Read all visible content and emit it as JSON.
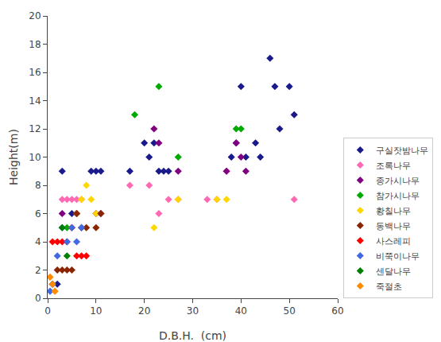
{
  "chart_data": {
    "type": "scatter",
    "xlabel": "D.B.H.  (cm)",
    "ylabel": "Height(m)",
    "xlim": [
      0,
      60
    ],
    "ylim": [
      0,
      20
    ],
    "xticks": [
      0,
      10,
      20,
      30,
      40,
      50,
      60
    ],
    "yticks": [
      0,
      2,
      4,
      6,
      8,
      10,
      12,
      14,
      16,
      18,
      20
    ],
    "grid": false,
    "legend": "lower right",
    "marker": "diamond",
    "series": [
      {
        "name": "구실잣밤나무",
        "color": "#1a1a8c",
        "x": [
          1,
          2,
          3,
          5,
          6,
          9,
          10,
          11,
          17,
          20,
          21,
          22,
          23,
          24,
          25,
          38,
          39,
          40,
          41,
          43,
          44,
          46,
          47,
          48,
          50,
          51
        ],
        "values": [
          1,
          1,
          9,
          6,
          6,
          9,
          9,
          9,
          9,
          11,
          10,
          11,
          9,
          9,
          9,
          10,
          11,
          15,
          10,
          11,
          10,
          17,
          15,
          12,
          15,
          13
        ]
      },
      {
        "name": "조록나무",
        "color": "#ff69b4",
        "x": [
          3,
          4,
          5,
          6,
          7,
          17,
          21,
          23,
          25,
          27,
          33,
          35,
          37,
          51
        ],
        "values": [
          7,
          7,
          7,
          7,
          7,
          8,
          8,
          6,
          7,
          7,
          7,
          7,
          9,
          7
        ]
      },
      {
        "name": "종가시나무",
        "color": "#800080",
        "x": [
          3,
          6,
          10,
          11,
          22,
          23,
          27,
          37,
          39,
          40,
          41
        ],
        "values": [
          6,
          6,
          6,
          6,
          12,
          11,
          9,
          9,
          11,
          10,
          9
        ]
      },
      {
        "name": "참가시나무",
        "color": "#00aa00",
        "x": [
          4,
          18,
          23,
          27,
          39,
          40
        ],
        "values": [
          5,
          13,
          15,
          10,
          12,
          12
        ]
      },
      {
        "name": "황칠나무",
        "color": "#ffd700",
        "x": [
          5,
          6,
          7,
          8,
          9,
          10,
          22,
          27,
          35,
          37
        ],
        "values": [
          5,
          6,
          7,
          8,
          7,
          6,
          5,
          7,
          7,
          7
        ]
      },
      {
        "name": "동백나무",
        "color": "#8b2500",
        "x": [
          2,
          3,
          4,
          5,
          6,
          7,
          8,
          10,
          11
        ],
        "values": [
          2,
          2,
          2,
          2,
          6,
          5,
          5,
          5,
          6
        ]
      },
      {
        "name": "사스레피",
        "color": "#ff0000",
        "x": [
          1,
          2,
          3,
          4,
          5,
          6,
          7,
          8
        ],
        "values": [
          4,
          4,
          4,
          4,
          5,
          3,
          3,
          3
        ]
      },
      {
        "name": "비쭉이나무",
        "color": "#4169e1",
        "x": [
          0.5,
          1,
          2,
          3,
          4,
          5,
          6,
          7
        ],
        "values": [
          0.5,
          1,
          3,
          5,
          4,
          5,
          4,
          5
        ]
      },
      {
        "name": "센달나무",
        "color": "#008000",
        "x": [
          3,
          4
        ],
        "values": [
          5,
          3
        ]
      },
      {
        "name": "죽절초",
        "color": "#ff8c00",
        "x": [
          0.5,
          1,
          1.5
        ],
        "values": [
          1.5,
          1,
          0.5
        ]
      }
    ]
  }
}
